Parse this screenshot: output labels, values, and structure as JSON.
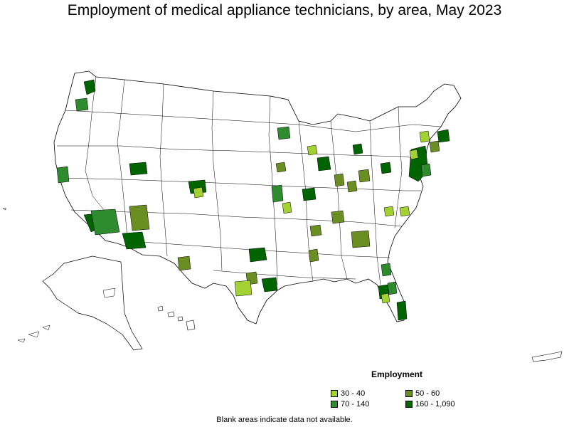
{
  "title": "Employment of medical appliance technicians, by area, May 2023",
  "legend": {
    "title": "Employment",
    "items": [
      {
        "label": "30 - 40",
        "color": "#a3d133"
      },
      {
        "label": "50 - 60",
        "color": "#6b8e23"
      },
      {
        "label": "70 - 140",
        "color": "#2e8b2e"
      },
      {
        "label": "160 - 1,090",
        "color": "#006400"
      }
    ]
  },
  "note": "Blank areas indicate data not available.",
  "colors": {
    "border": "#000000",
    "blank": "#ffffff"
  }
}
